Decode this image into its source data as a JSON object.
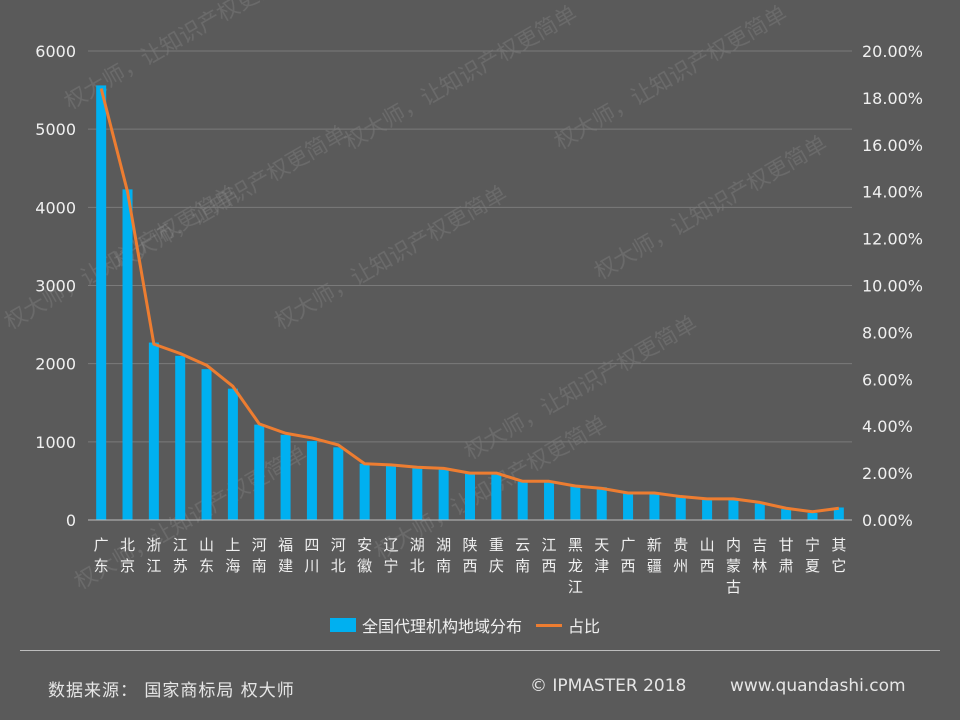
{
  "chart_data": {
    "type": "bar",
    "categories": [
      "广东",
      "北京",
      "浙江",
      "江苏",
      "山东",
      "上海",
      "河南",
      "福建",
      "四川",
      "河北",
      "安徽",
      "辽宁",
      "湖北",
      "湖南",
      "陕西",
      "重庆",
      "云南",
      "江西",
      "黑龙江",
      "天津",
      "广西",
      "新疆",
      "贵州",
      "山西",
      "内蒙古",
      "吉林",
      "甘肃",
      "宁夏",
      "其它"
    ],
    "series": [
      {
        "name": "全国代理机构地域分布",
        "type": "bar",
        "axis": "left",
        "color": "#00b0f0",
        "values": [
          5560,
          4230,
          2270,
          2100,
          1930,
          1680,
          1220,
          1090,
          1010,
          930,
          720,
          700,
          680,
          650,
          590,
          580,
          490,
          480,
          440,
          420,
          340,
          330,
          290,
          270,
          270,
          210,
          140,
          90,
          160
        ]
      },
      {
        "name": "占比",
        "type": "line",
        "axis": "right",
        "color": "#ed7d31",
        "values": [
          0.184,
          0.14,
          0.075,
          0.071,
          0.066,
          0.057,
          0.041,
          0.037,
          0.035,
          0.032,
          0.024,
          0.0235,
          0.0225,
          0.022,
          0.02,
          0.02,
          0.0165,
          0.0165,
          0.0145,
          0.0135,
          0.0115,
          0.0115,
          0.01,
          0.009,
          0.009,
          0.0075,
          0.005,
          0.0035,
          0.005
        ]
      }
    ],
    "y_left": {
      "ylim": [
        0,
        6000
      ],
      "ticks": [
        0,
        1000,
        2000,
        3000,
        4000,
        5000,
        6000
      ]
    },
    "y_right": {
      "ylim": [
        0,
        0.2
      ],
      "ticks": [
        "0.00%",
        "2.00%",
        "4.00%",
        "6.00%",
        "8.00%",
        "10.00%",
        "12.00%",
        "14.00%",
        "16.00%",
        "18.00%",
        "20.00%"
      ]
    },
    "grid": true,
    "legend": "bottom"
  },
  "legend": {
    "bar_label": "全国代理机构地域分布",
    "line_label": "占比"
  },
  "footer": {
    "source": "数据来源： 国家商标局  权大师",
    "copyright": "© IPMASTER  2018",
    "site": "www.quandashi.com"
  },
  "watermark": "权大师，让知识产权更简单",
  "colors": {
    "background": "#5a5a5a",
    "bar": "#00b0f0",
    "line": "#ed7d31",
    "grid": "#7a7a7a",
    "text": "#f0f0f0"
  }
}
